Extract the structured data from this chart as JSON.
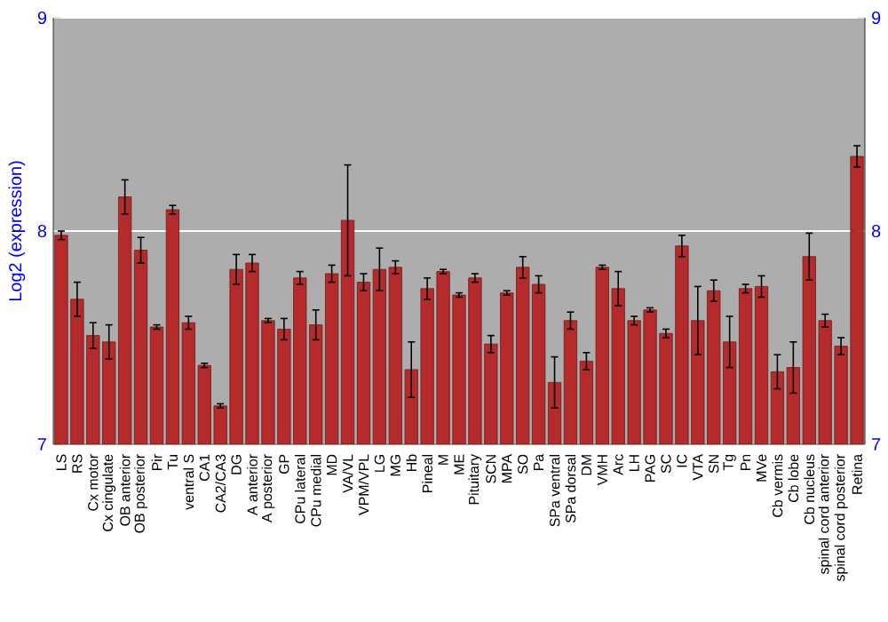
{
  "chart_data": {
    "type": "bar",
    "ylabel": "Log2 (expression)",
    "categories": [
      "LS",
      "RS",
      "Cx motor",
      "Cx cingulate",
      "OB anterior",
      "OB posterior",
      "Pir",
      "Tu",
      "ventral S",
      "CA1",
      "CA2/CA3",
      "DG",
      "A anterior",
      "A posterior",
      "GP",
      "CPu lateral",
      "CPu medial",
      "MD",
      "VA/VL",
      "VPM/VPL",
      "LG",
      "MG",
      "Hb",
      "Pineal",
      "M",
      "ME",
      "Pituitary",
      "SCN",
      "MPA",
      "SO",
      "Pa",
      "SPa ventral",
      "SPa dorsal",
      "DM",
      "VMH",
      "Arc",
      "LH",
      "PAG",
      "SC",
      "IC",
      "VTA",
      "SN",
      "Tg",
      "Pn",
      "MVe",
      "Cb vermis",
      "Cb lobe",
      "Cb nucleus",
      "spinal cord anterior",
      "spinal cord posterior",
      "Retina"
    ],
    "values": [
      7.98,
      7.68,
      7.51,
      7.48,
      8.16,
      7.91,
      7.55,
      8.1,
      7.57,
      7.37,
      7.18,
      7.82,
      7.85,
      7.58,
      7.54,
      7.78,
      7.56,
      7.8,
      8.05,
      7.76,
      7.82,
      7.83,
      7.35,
      7.73,
      7.81,
      7.7,
      7.78,
      7.47,
      7.71,
      7.83,
      7.75,
      7.29,
      7.58,
      7.39,
      7.83,
      7.73,
      7.58,
      7.63,
      7.52,
      7.93,
      7.58,
      7.72,
      7.48,
      7.73,
      7.74,
      7.34,
      7.36,
      7.88,
      7.58,
      7.46,
      8.35
    ],
    "errors": [
      0.02,
      0.08,
      0.06,
      0.08,
      0.08,
      0.06,
      0.01,
      0.02,
      0.03,
      0.01,
      0.01,
      0.07,
      0.04,
      0.01,
      0.05,
      0.03,
      0.07,
      0.04,
      0.26,
      0.04,
      0.1,
      0.03,
      0.13,
      0.05,
      0.01,
      0.01,
      0.02,
      0.04,
      0.01,
      0.05,
      0.04,
      0.12,
      0.04,
      0.04,
      0.01,
      0.08,
      0.02,
      0.01,
      0.02,
      0.05,
      0.16,
      0.05,
      0.12,
      0.02,
      0.05,
      0.08,
      0.12,
      0.11,
      0.03,
      0.04,
      0.05
    ],
    "color": "#b52a2a",
    "ylim": [
      7,
      9
    ],
    "yticks": [
      7,
      8,
      9
    ],
    "y2lim": [
      7,
      9
    ],
    "y2ticks": [
      7,
      8,
      9
    ],
    "grid": "y"
  }
}
